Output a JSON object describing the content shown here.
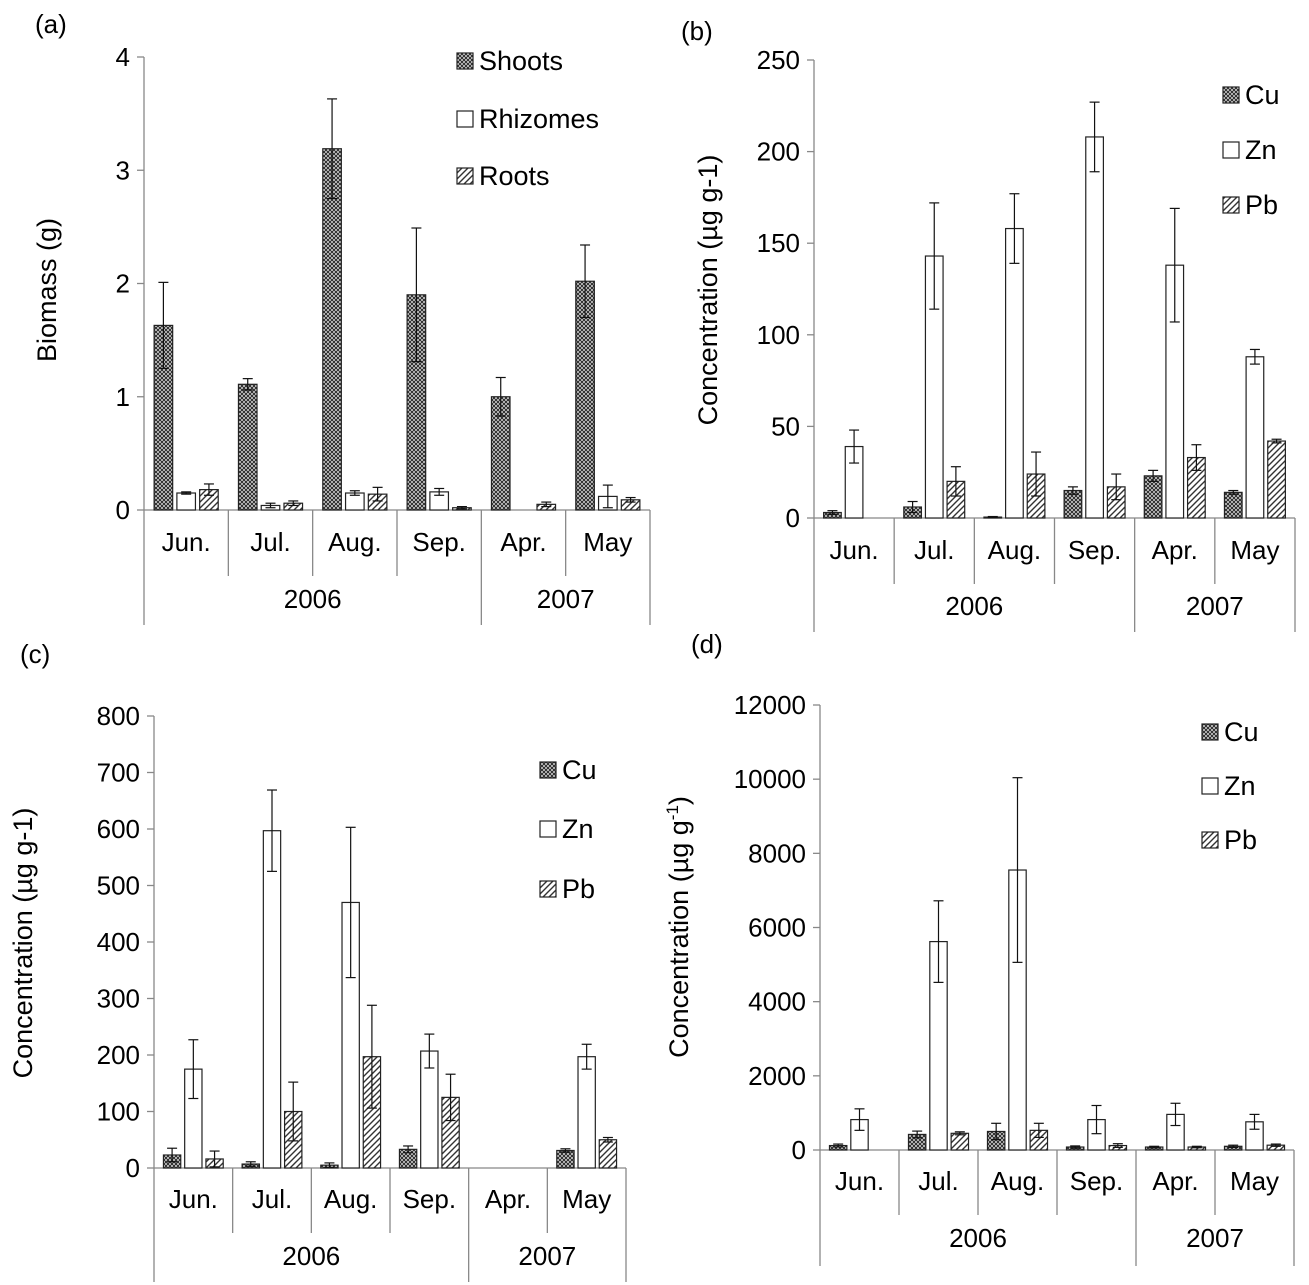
{
  "chart_data": [
    {
      "panel_label": "(a)",
      "type": "bar",
      "ylabel": "Biomass (g)",
      "ylabel_sup": "",
      "ylim": [
        0,
        4
      ],
      "yticks": [
        0,
        1,
        2,
        3,
        4
      ],
      "categories": [
        "Jun.",
        "Jul.",
        "Aug.",
        "Sep.",
        "Apr.",
        "May"
      ],
      "groups": [
        {
          "label": "2006",
          "count": 4
        },
        {
          "label": "2007",
          "count": 2
        }
      ],
      "series": [
        {
          "name": "Shoots",
          "pattern": "crosshatch",
          "values": [
            1.63,
            1.11,
            3.19,
            1.9,
            1.0,
            2.02
          ],
          "errors": [
            0.38,
            0.05,
            0.44,
            0.59,
            0.17,
            0.32
          ]
        },
        {
          "name": "Rhizomes",
          "pattern": "open",
          "values": [
            0.15,
            0.04,
            0.15,
            0.16,
            0,
            0.12
          ],
          "errors": [
            0.01,
            0.02,
            0.02,
            0.03,
            0,
            0.1
          ]
        },
        {
          "name": "Roots",
          "pattern": "diagonal",
          "values": [
            0.18,
            0.06,
            0.14,
            0.02,
            0.05,
            0.09
          ],
          "errors": [
            0.05,
            0.02,
            0.06,
            0.01,
            0.02,
            0.02
          ]
        }
      ],
      "legend_position": "top-right"
    },
    {
      "panel_label": "(b)",
      "type": "bar",
      "ylabel": "Concentration (µg g-1)",
      "ylabel_sup": "",
      "ylim": [
        0,
        250
      ],
      "yticks": [
        0,
        50,
        100,
        150,
        200,
        250
      ],
      "categories": [
        "Jun.",
        "Jul.",
        "Aug.",
        "Sep.",
        "Apr.",
        "May"
      ],
      "groups": [
        {
          "label": "2006",
          "count": 4
        },
        {
          "label": "2007",
          "count": 2
        }
      ],
      "series": [
        {
          "name": "Cu",
          "pattern": "crosshatch",
          "values": [
            3,
            6,
            0.5,
            15,
            23,
            14
          ],
          "errors": [
            1,
            3,
            0.3,
            2,
            3,
            1
          ]
        },
        {
          "name": "Zn",
          "pattern": "open",
          "values": [
            39,
            143,
            158,
            208,
            138,
            88
          ],
          "errors": [
            9,
            29,
            19,
            19,
            31,
            4
          ]
        },
        {
          "name": "Pb",
          "pattern": "diagonal",
          "values": [
            0,
            20,
            24,
            17,
            33,
            42
          ],
          "errors": [
            0,
            8,
            12,
            7,
            7,
            1
          ]
        }
      ],
      "legend_position": "top-right"
    },
    {
      "panel_label": "(c)",
      "type": "bar",
      "ylabel": "Concentration (µg g-1)",
      "ylabel_sup": "",
      "ylim": [
        0,
        800
      ],
      "yticks": [
        0,
        100,
        200,
        300,
        400,
        500,
        600,
        700,
        800
      ],
      "categories": [
        "Jun.",
        "Jul.",
        "Aug.",
        "Sep.",
        "Apr.",
        "May"
      ],
      "groups": [
        {
          "label": "2006",
          "count": 4
        },
        {
          "label": "2007",
          "count": 2
        }
      ],
      "series": [
        {
          "name": "Cu",
          "pattern": "crosshatch",
          "values": [
            23,
            7,
            5,
            33,
            0,
            31
          ],
          "errors": [
            12,
            4,
            4,
            6,
            0,
            3
          ]
        },
        {
          "name": "Zn",
          "pattern": "open",
          "values": [
            175,
            597,
            470,
            207,
            0,
            197
          ],
          "errors": [
            52,
            72,
            133,
            30,
            0,
            22
          ]
        },
        {
          "name": "Pb",
          "pattern": "diagonal",
          "values": [
            16,
            100,
            197,
            125,
            0,
            50
          ],
          "errors": [
            14,
            52,
            91,
            41,
            0,
            4
          ]
        }
      ],
      "legend_position": "top-right"
    },
    {
      "panel_label": "(d)",
      "type": "bar",
      "ylabel": "Concentration (µg g",
      "ylabel_sup": "-1",
      "ylabel_tail": ")",
      "ylim": [
        0,
        12000
      ],
      "yticks": [
        0,
        2000,
        4000,
        6000,
        8000,
        10000,
        12000
      ],
      "categories": [
        "Jun.",
        "Jul.",
        "Aug.",
        "Sep.",
        "Apr.",
        "May"
      ],
      "groups": [
        {
          "label": "2006",
          "count": 4
        },
        {
          "label": "2007",
          "count": 2
        }
      ],
      "series": [
        {
          "name": "Cu",
          "pattern": "crosshatch",
          "values": [
            120,
            420,
            500,
            80,
            80,
            100
          ],
          "errors": [
            40,
            90,
            220,
            30,
            20,
            30
          ]
        },
        {
          "name": "Zn",
          "pattern": "open",
          "values": [
            820,
            5620,
            7550,
            820,
            960,
            760
          ],
          "errors": [
            290,
            1100,
            2490,
            380,
            300,
            200
          ]
        },
        {
          "name": "Pb",
          "pattern": "diagonal",
          "values": [
            0,
            450,
            530,
            120,
            80,
            130
          ],
          "errors": [
            0,
            40,
            190,
            50,
            20,
            30
          ]
        }
      ],
      "legend_position": "top-right"
    }
  ]
}
